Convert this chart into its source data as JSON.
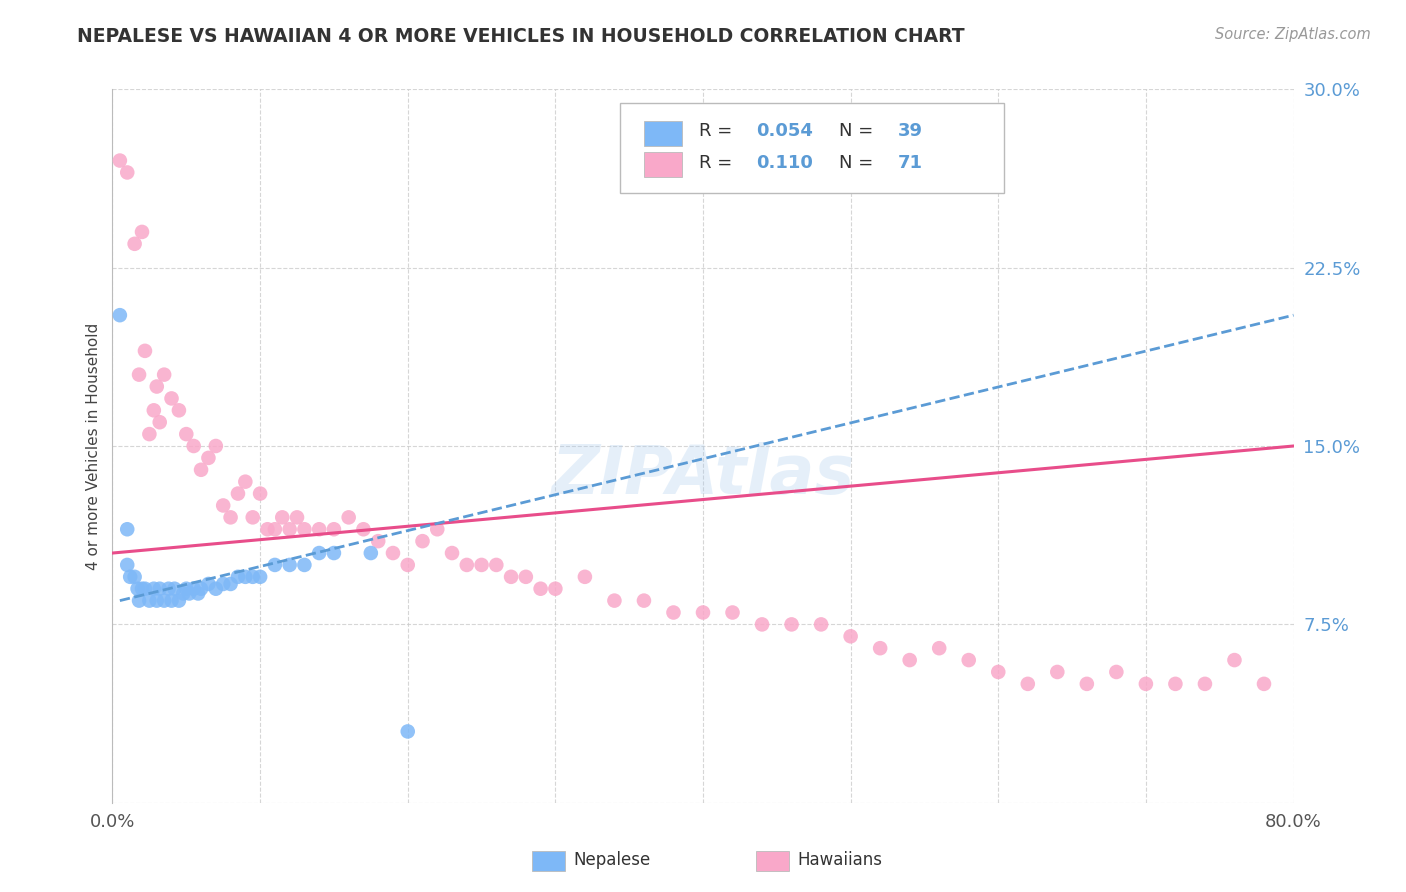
{
  "title": "NEPALESE VS HAWAIIAN 4 OR MORE VEHICLES IN HOUSEHOLD CORRELATION CHART",
  "source": "Source: ZipAtlas.com",
  "ylabel": "4 or more Vehicles in Household",
  "xlim": [
    0.0,
    0.8
  ],
  "ylim": [
    0.0,
    0.3
  ],
  "xticks": [
    0.0,
    0.1,
    0.2,
    0.3,
    0.4,
    0.5,
    0.6,
    0.7,
    0.8
  ],
  "yticks": [
    0.0,
    0.075,
    0.15,
    0.225,
    0.3
  ],
  "nepalese_R": 0.054,
  "nepalese_N": 39,
  "hawaiian_R": 0.11,
  "hawaiian_N": 71,
  "nepalese_color": "#7EB8F7",
  "hawaiian_color": "#F9A8C9",
  "trendline_nepalese_color": "#5B9BD5",
  "trendline_hawaiian_color": "#E84D8A",
  "watermark": "ZIPAtlas",
  "nepalese_x": [
    0.005,
    0.01,
    0.01,
    0.012,
    0.015,
    0.017,
    0.018,
    0.02,
    0.022,
    0.025,
    0.028,
    0.03,
    0.032,
    0.035,
    0.038,
    0.04,
    0.042,
    0.045,
    0.048,
    0.05,
    0.052,
    0.055,
    0.058,
    0.06,
    0.065,
    0.07,
    0.075,
    0.08,
    0.085,
    0.09,
    0.095,
    0.1,
    0.11,
    0.12,
    0.13,
    0.14,
    0.15,
    0.175,
    0.2
  ],
  "nepalese_y": [
    0.205,
    0.1,
    0.115,
    0.095,
    0.095,
    0.09,
    0.085,
    0.09,
    0.09,
    0.085,
    0.09,
    0.085,
    0.09,
    0.085,
    0.09,
    0.085,
    0.09,
    0.085,
    0.088,
    0.09,
    0.088,
    0.09,
    0.088,
    0.09,
    0.092,
    0.09,
    0.092,
    0.092,
    0.095,
    0.095,
    0.095,
    0.095,
    0.1,
    0.1,
    0.1,
    0.105,
    0.105,
    0.105,
    0.03
  ],
  "hawaiian_x": [
    0.005,
    0.01,
    0.015,
    0.018,
    0.02,
    0.022,
    0.025,
    0.028,
    0.03,
    0.032,
    0.035,
    0.04,
    0.045,
    0.05,
    0.055,
    0.06,
    0.065,
    0.07,
    0.075,
    0.08,
    0.085,
    0.09,
    0.095,
    0.1,
    0.105,
    0.11,
    0.115,
    0.12,
    0.125,
    0.13,
    0.14,
    0.15,
    0.16,
    0.17,
    0.18,
    0.19,
    0.2,
    0.21,
    0.22,
    0.23,
    0.24,
    0.25,
    0.26,
    0.27,
    0.28,
    0.29,
    0.3,
    0.32,
    0.34,
    0.36,
    0.38,
    0.4,
    0.42,
    0.44,
    0.46,
    0.48,
    0.5,
    0.52,
    0.54,
    0.56,
    0.58,
    0.6,
    0.62,
    0.64,
    0.66,
    0.68,
    0.7,
    0.72,
    0.74,
    0.76,
    0.78
  ],
  "hawaiian_y": [
    0.27,
    0.265,
    0.235,
    0.18,
    0.24,
    0.19,
    0.155,
    0.165,
    0.175,
    0.16,
    0.18,
    0.17,
    0.165,
    0.155,
    0.15,
    0.14,
    0.145,
    0.15,
    0.125,
    0.12,
    0.13,
    0.135,
    0.12,
    0.13,
    0.115,
    0.115,
    0.12,
    0.115,
    0.12,
    0.115,
    0.115,
    0.115,
    0.12,
    0.115,
    0.11,
    0.105,
    0.1,
    0.11,
    0.115,
    0.105,
    0.1,
    0.1,
    0.1,
    0.095,
    0.095,
    0.09,
    0.09,
    0.095,
    0.085,
    0.085,
    0.08,
    0.08,
    0.08,
    0.075,
    0.075,
    0.075,
    0.07,
    0.065,
    0.06,
    0.065,
    0.06,
    0.055,
    0.05,
    0.055,
    0.05,
    0.055,
    0.05,
    0.05,
    0.05,
    0.06,
    0.05
  ]
}
